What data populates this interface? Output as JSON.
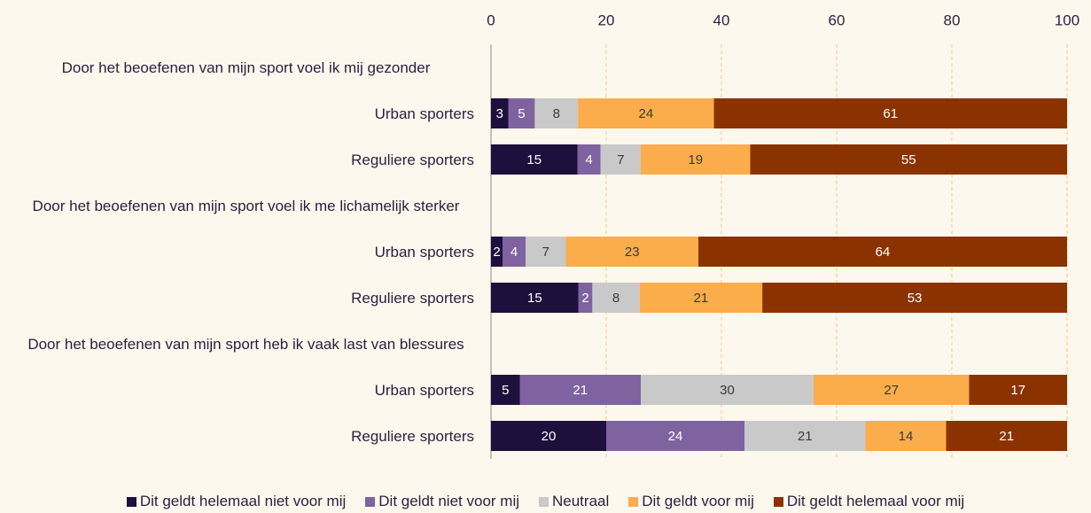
{
  "chart_data": {
    "type": "stacked_barh",
    "categories": [
      "Door het beoefenen van mijn sport voel ik mij gezonder",
      "Urban sporters",
      "Reguliere sporters",
      "Door het beoefenen van mijn sport voel ik me lichamelijk sterker",
      "Urban sporters",
      "Reguliere sporters",
      "Door het beoefenen van mijn sport heb ik vaak last van blessures",
      "Urban sporters",
      "Reguliere sporters"
    ],
    "series": [
      {
        "name": "Dit geldt helemaal niet voor mij",
        "color": "#1e0f3c",
        "values": [
          null,
          3.0,
          15,
          null,
          2,
          15.2,
          null,
          5,
          20
        ],
        "value_labels": [
          null,
          "3",
          "15",
          null,
          "2",
          "15",
          null,
          "5",
          "20"
        ]
      },
      {
        "name": "Dit geldt niet voor mij",
        "color": "#7e63a0",
        "values": [
          null,
          4.6,
          4,
          null,
          4,
          2.4,
          null,
          21,
          24
        ],
        "value_labels": [
          null,
          "5",
          "4",
          null,
          "4",
          "2",
          null,
          "21",
          "24"
        ]
      },
      {
        "name": "Neutraal",
        "color": "#c9c9c9",
        "values": [
          null,
          7.5,
          7,
          null,
          7,
          8.2,
          null,
          30,
          21
        ],
        "value_labels": [
          null,
          "8",
          "7",
          null,
          "7",
          "8",
          null,
          "30",
          "21"
        ]
      },
      {
        "name": "Dit geldt voor mij",
        "color": "#fbac4b",
        "values": [
          null,
          23.6,
          19,
          null,
          23,
          21.3,
          null,
          27,
          14
        ],
        "value_labels": [
          null,
          "24",
          "19",
          null,
          "23",
          "21",
          null,
          "27",
          "14"
        ]
      },
      {
        "name": "Dit geldt helemaal voor mij",
        "color": "#8b3300",
        "values": [
          null,
          61.3,
          55,
          null,
          64,
          52.9,
          null,
          17,
          21
        ],
        "value_labels": [
          null,
          "61",
          "55",
          null,
          "64",
          "53",
          null,
          "17",
          "21"
        ]
      }
    ],
    "xlim": [
      0,
      100
    ],
    "xticks": [
      0,
      20,
      40,
      60,
      80,
      100
    ],
    "grid": true,
    "legend": "bottom"
  }
}
